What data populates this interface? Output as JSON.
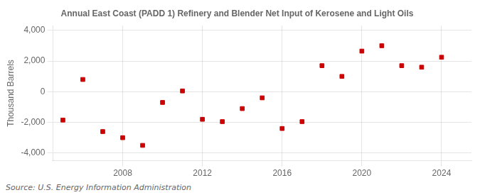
{
  "chart_data": {
    "type": "scatter",
    "title": "Annual East Coast (PADD 1) Refinery and Blender Net Input of Kerosene and Light Oils",
    "ylabel": "Thousand Barrels",
    "source": "Source: U.S. Energy Information Administration",
    "x": [
      2005,
      2006,
      2007,
      2008,
      2009,
      2010,
      2011,
      2012,
      2013,
      2014,
      2015,
      2016,
      2017,
      2018,
      2019,
      2020,
      2021,
      2022,
      2023,
      2024
    ],
    "values": [
      -1850,
      800,
      -2600,
      -3000,
      -3500,
      -700,
      50,
      -1800,
      -1950,
      -1100,
      -400,
      -2400,
      -1950,
      1700,
      1000,
      2650,
      3000,
      1700,
      1600,
      2250
    ],
    "color": "#cc0000",
    "marker": "square",
    "xlim": [
      2004.5,
      2025.5
    ],
    "xticks": [
      2008,
      2012,
      2016,
      2020,
      2024
    ],
    "ylim": [
      -4500,
      4300
    ],
    "yticks": [
      {
        "value": -4000,
        "label": "-4,000"
      },
      {
        "value": -2000,
        "label": "-2,000"
      },
      0,
      {
        "value": 2000,
        "label": "2,000"
      },
      {
        "value": 4000,
        "label": "4,000"
      }
    ],
    "grid": true
  }
}
